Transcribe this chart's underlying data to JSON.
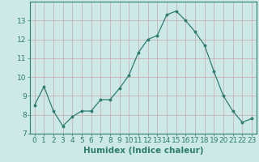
{
  "x": [
    0,
    1,
    2,
    3,
    4,
    5,
    6,
    7,
    8,
    9,
    10,
    11,
    12,
    13,
    14,
    15,
    16,
    17,
    18,
    19,
    20,
    21,
    22,
    23
  ],
  "y": [
    8.5,
    9.5,
    8.2,
    7.4,
    7.9,
    8.2,
    8.2,
    8.8,
    8.8,
    9.4,
    10.1,
    11.3,
    12.0,
    12.2,
    13.3,
    13.5,
    13.0,
    12.4,
    11.7,
    10.3,
    9.0,
    8.2,
    7.6,
    7.8
  ],
  "xlabel": "Humidex (Indice chaleur)",
  "ylim": [
    7,
    14
  ],
  "xlim": [
    -0.5,
    23.5
  ],
  "yticks": [
    7,
    8,
    9,
    10,
    11,
    12,
    13
  ],
  "xticks": [
    0,
    1,
    2,
    3,
    4,
    5,
    6,
    7,
    8,
    9,
    10,
    11,
    12,
    13,
    14,
    15,
    16,
    17,
    18,
    19,
    20,
    21,
    22,
    23
  ],
  "line_color": "#2e7d6e",
  "marker_color": "#2e7d6e",
  "bg_color": "#cce9e8",
  "grid_color_major": "#c8a8a8",
  "tick_label_color": "#2e7d6e",
  "xlabel_color": "#2e7d6e",
  "xlabel_fontsize": 7.5,
  "tick_fontsize": 6.5
}
